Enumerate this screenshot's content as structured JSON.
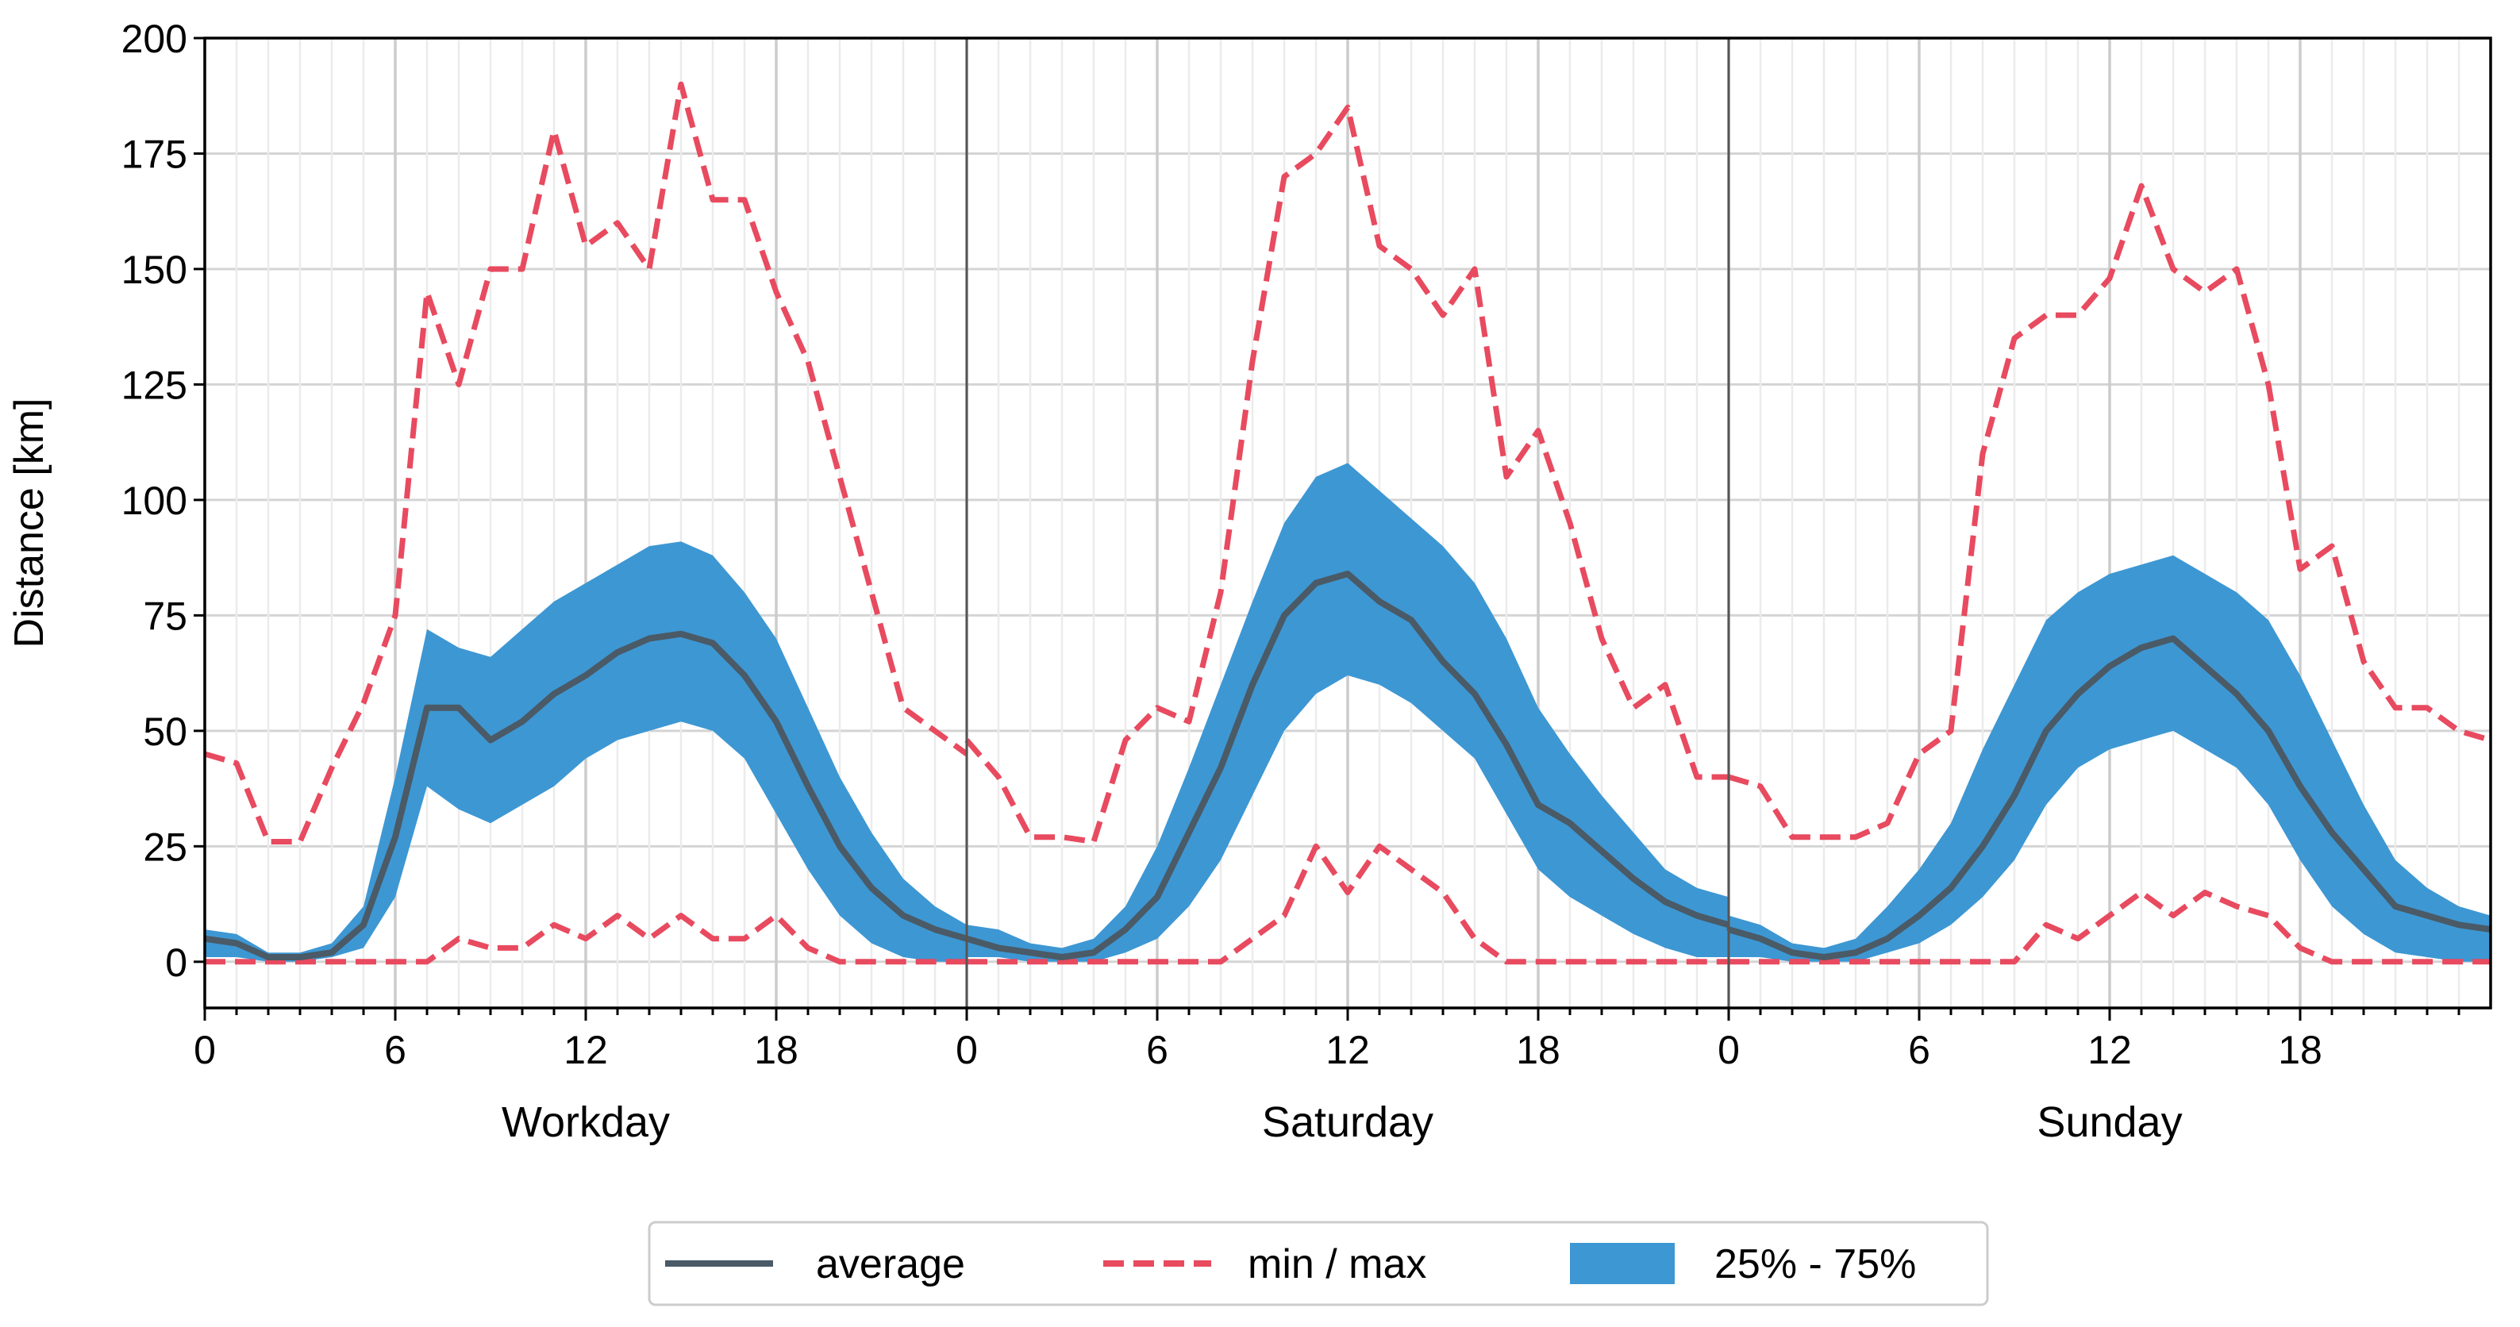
{
  "chart_data": {
    "type": "line",
    "ylabel": "Distance [km]",
    "ylim": [
      -10,
      200
    ],
    "yticks": [
      0,
      25,
      50,
      75,
      100,
      125,
      150,
      175,
      200
    ],
    "xlim": [
      0,
      24
    ],
    "xticks": [
      0,
      6,
      12,
      18
    ],
    "grid": true,
    "legend": {
      "placement": "bottom-center",
      "entries": [
        {
          "key": "average",
          "label": "average",
          "style": "solid",
          "color": "#4a5a66"
        },
        {
          "key": "minmax",
          "label": "min / max",
          "style": "dashed",
          "color": "#e84a5f"
        },
        {
          "key": "iqr",
          "label": "25% - 75%",
          "style": "fill",
          "color": "#3d97d3"
        }
      ]
    },
    "panels": [
      {
        "name": "Workday",
        "x": [
          0,
          1,
          2,
          3,
          4,
          5,
          6,
          7,
          8,
          9,
          10,
          11,
          12,
          13,
          14,
          15,
          16,
          17,
          18,
          19,
          20,
          21,
          22,
          23,
          24
        ],
        "average": [
          5,
          4,
          1,
          1,
          2,
          8,
          27,
          55,
          55,
          48,
          52,
          58,
          62,
          67,
          70,
          71,
          69,
          62,
          52,
          38,
          25,
          16,
          10,
          7,
          5
        ],
        "q25": [
          1,
          1,
          0,
          0,
          1,
          3,
          14,
          38,
          33,
          30,
          34,
          38,
          44,
          48,
          50,
          52,
          50,
          44,
          32,
          20,
          10,
          4,
          1,
          0,
          0
        ],
        "q75": [
          7,
          6,
          2,
          2,
          4,
          12,
          40,
          72,
          68,
          66,
          72,
          78,
          82,
          86,
          90,
          91,
          88,
          80,
          70,
          55,
          40,
          28,
          18,
          12,
          8
        ],
        "max": [
          45,
          43,
          26,
          26,
          42,
          56,
          75,
          145,
          125,
          150,
          150,
          180,
          155,
          160,
          150,
          190,
          165,
          165,
          145,
          130,
          105,
          80,
          55,
          50,
          45
        ],
        "min": [
          0,
          0,
          0,
          0,
          0,
          0,
          0,
          0,
          5,
          3,
          3,
          8,
          5,
          10,
          5,
          10,
          5,
          5,
          10,
          3,
          0,
          0,
          0,
          0,
          0
        ]
      },
      {
        "name": "Saturday",
        "x": [
          0,
          1,
          2,
          3,
          4,
          5,
          6,
          7,
          8,
          9,
          10,
          11,
          12,
          13,
          14,
          15,
          16,
          17,
          18,
          19,
          20,
          21,
          22,
          23,
          24
        ],
        "average": [
          5,
          3,
          2,
          1,
          2,
          7,
          14,
          28,
          42,
          60,
          75,
          82,
          84,
          78,
          74,
          65,
          58,
          47,
          34,
          30,
          24,
          18,
          13,
          10,
          8
        ],
        "q25": [
          1,
          1,
          0,
          0,
          0,
          2,
          5,
          12,
          22,
          36,
          50,
          58,
          62,
          60,
          56,
          50,
          44,
          32,
          20,
          14,
          10,
          6,
          3,
          1,
          1
        ],
        "q75": [
          8,
          7,
          4,
          3,
          5,
          12,
          25,
          42,
          60,
          78,
          95,
          105,
          108,
          102,
          96,
          90,
          82,
          70,
          55,
          45,
          36,
          28,
          20,
          16,
          14
        ],
        "max": [
          48,
          40,
          27,
          27,
          26,
          48,
          55,
          52,
          80,
          130,
          170,
          175,
          185,
          155,
          150,
          140,
          150,
          105,
          115,
          95,
          70,
          55,
          60,
          40,
          40
        ],
        "min": [
          0,
          0,
          0,
          0,
          0,
          0,
          0,
          0,
          0,
          5,
          10,
          25,
          15,
          25,
          20,
          15,
          5,
          0,
          0,
          0,
          0,
          0,
          0,
          0,
          0
        ]
      },
      {
        "name": "Sunday",
        "x": [
          0,
          1,
          2,
          3,
          4,
          5,
          6,
          7,
          8,
          9,
          10,
          11,
          12,
          13,
          14,
          15,
          16,
          17,
          18,
          19,
          20,
          21,
          22,
          23,
          24
        ],
        "average": [
          7,
          5,
          2,
          1,
          2,
          5,
          10,
          16,
          25,
          36,
          50,
          58,
          64,
          68,
          70,
          64,
          58,
          50,
          38,
          28,
          20,
          12,
          10,
          8,
          7
        ],
        "q25": [
          1,
          1,
          0,
          0,
          0,
          2,
          4,
          8,
          14,
          22,
          34,
          42,
          46,
          48,
          50,
          46,
          42,
          34,
          22,
          12,
          6,
          2,
          1,
          0,
          0
        ],
        "q75": [
          10,
          8,
          4,
          3,
          5,
          12,
          20,
          30,
          46,
          60,
          74,
          80,
          84,
          86,
          88,
          84,
          80,
          74,
          62,
          48,
          34,
          22,
          16,
          12,
          10
        ],
        "max": [
          40,
          38,
          27,
          27,
          27,
          30,
          45,
          50,
          110,
          135,
          140,
          140,
          148,
          168,
          150,
          145,
          150,
          125,
          85,
          90,
          65,
          55,
          55,
          50,
          48
        ],
        "min": [
          0,
          0,
          0,
          0,
          0,
          0,
          0,
          0,
          0,
          0,
          8,
          5,
          10,
          15,
          10,
          15,
          12,
          10,
          3,
          0,
          0,
          0,
          0,
          0,
          0
        ]
      }
    ]
  }
}
